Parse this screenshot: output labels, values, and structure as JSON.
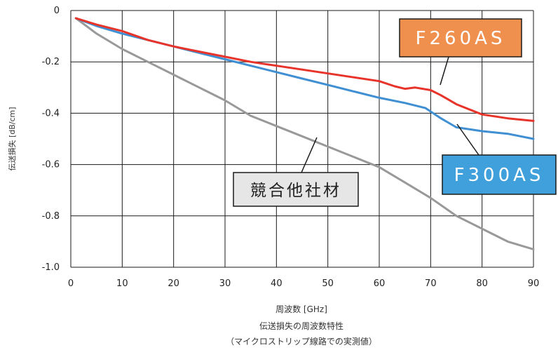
{
  "chart_data": {
    "type": "line",
    "xlabel": "周波数 [GHz]",
    "ylabel": "伝送損失 [dB/cm]",
    "captions": [
      "伝送損失の周波数特性",
      "（マイクロストリップ線路での実測値）"
    ],
    "xlim": [
      0,
      90
    ],
    "ylim": [
      -1.0,
      0
    ],
    "xticks": [
      0,
      10,
      20,
      30,
      40,
      50,
      60,
      70,
      80,
      90
    ],
    "yticks": [
      0,
      -0.2,
      -0.4,
      -0.6,
      -0.8,
      -1.0
    ],
    "ytick_labels": [
      "0",
      "-0.2",
      "-0.4",
      "-0.6",
      "-0.8",
      "-1.0"
    ],
    "grid": true,
    "series": [
      {
        "name": "F260AS",
        "color": "#e8332a",
        "label_bg": "#f0904f",
        "x": [
          1,
          5,
          10,
          15,
          20,
          25,
          30,
          35,
          40,
          45,
          50,
          55,
          60,
          63,
          65,
          67,
          70,
          72,
          75,
          80,
          85,
          90
        ],
        "y": [
          -0.03,
          -0.055,
          -0.08,
          -0.115,
          -0.14,
          -0.16,
          -0.18,
          -0.2,
          -0.215,
          -0.23,
          -0.245,
          -0.26,
          -0.275,
          -0.295,
          -0.305,
          -0.3,
          -0.31,
          -0.33,
          -0.365,
          -0.405,
          -0.42,
          -0.43
        ]
      },
      {
        "name": "F300AS",
        "color": "#3f8fd2",
        "label_bg": "#3fa0dc",
        "x": [
          1,
          5,
          10,
          15,
          20,
          25,
          30,
          35,
          40,
          45,
          50,
          55,
          60,
          65,
          69,
          72,
          75,
          80,
          85,
          90
        ],
        "y": [
          -0.03,
          -0.06,
          -0.09,
          -0.115,
          -0.14,
          -0.165,
          -0.19,
          -0.215,
          -0.24,
          -0.265,
          -0.29,
          -0.315,
          -0.34,
          -0.36,
          -0.38,
          -0.42,
          -0.455,
          -0.47,
          -0.48,
          -0.5
        ]
      },
      {
        "name": "競合他社材",
        "color": "#999999",
        "label_bg": "#e6e6e6",
        "x": [
          1,
          5,
          10,
          15,
          20,
          25,
          30,
          35,
          40,
          45,
          50,
          55,
          60,
          65,
          70,
          75,
          80,
          85,
          90
        ],
        "y": [
          -0.03,
          -0.09,
          -0.15,
          -0.2,
          -0.25,
          -0.3,
          -0.35,
          -0.41,
          -0.45,
          -0.49,
          -0.53,
          -0.57,
          -0.61,
          -0.67,
          -0.73,
          -0.8,
          -0.85,
          -0.9,
          -0.93
        ]
      }
    ]
  }
}
